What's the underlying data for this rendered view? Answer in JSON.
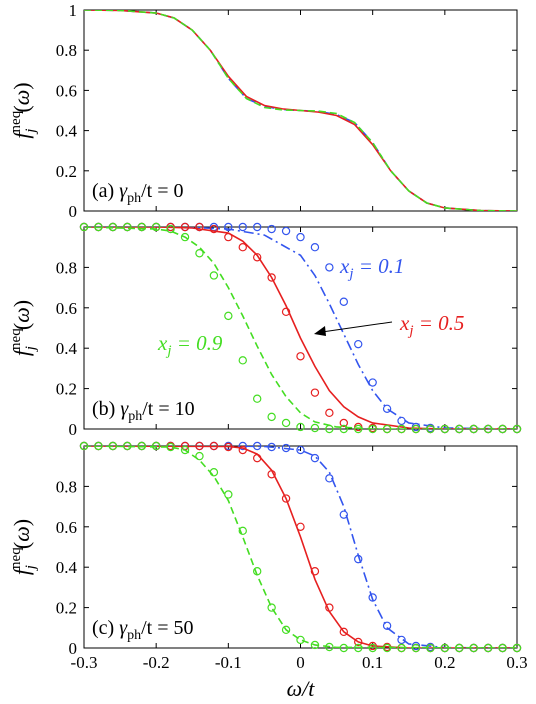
{
  "chart_data": [
    {
      "panel_label": "(a) γph/t = 0",
      "type": "line",
      "ylabel": "f_j^neq(ω)",
      "xlim": [
        -0.3,
        0.3
      ],
      "ylim": [
        0,
        1
      ],
      "yticks": [
        "0",
        "0.2",
        "0.4",
        "0.6",
        "0.8",
        "1"
      ],
      "series": [
        {
          "color": "#3355ee",
          "style": "dash-dot",
          "x": [
            -0.3,
            -0.25,
            -0.2,
            -0.175,
            -0.15,
            -0.125,
            -0.1,
            -0.075,
            -0.05,
            -0.025,
            0,
            0.025,
            0.05,
            0.075,
            0.1,
            0.125,
            0.15,
            0.175,
            0.2,
            0.25,
            0.3
          ],
          "y": [
            1.0,
            0.998,
            0.985,
            0.96,
            0.9,
            0.8,
            0.66,
            0.56,
            0.52,
            0.505,
            0.5,
            0.495,
            0.48,
            0.44,
            0.34,
            0.2,
            0.1,
            0.04,
            0.015,
            0.002,
            0.0
          ]
        },
        {
          "color": "#e62020",
          "style": "solid",
          "x": [
            -0.3,
            -0.25,
            -0.2,
            -0.175,
            -0.15,
            -0.125,
            -0.1,
            -0.075,
            -0.05,
            -0.025,
            0,
            0.025,
            0.05,
            0.075,
            0.1,
            0.125,
            0.15,
            0.175,
            0.2,
            0.25,
            0.3
          ],
          "y": [
            1.0,
            0.998,
            0.985,
            0.96,
            0.9,
            0.8,
            0.67,
            0.57,
            0.525,
            0.508,
            0.5,
            0.492,
            0.475,
            0.43,
            0.33,
            0.2,
            0.1,
            0.04,
            0.015,
            0.002,
            0.0
          ]
        },
        {
          "color": "#44dd22",
          "style": "dashed",
          "x": [
            -0.3,
            -0.25,
            -0.2,
            -0.175,
            -0.15,
            -0.125,
            -0.1,
            -0.075,
            -0.05,
            -0.025,
            0,
            0.025,
            0.05,
            0.075,
            0.1,
            0.125,
            0.15,
            0.175,
            0.2,
            0.25,
            0.3
          ],
          "y": [
            1.0,
            0.998,
            0.985,
            0.96,
            0.9,
            0.8,
            0.66,
            0.56,
            0.515,
            0.503,
            0.5,
            0.497,
            0.485,
            0.44,
            0.34,
            0.2,
            0.1,
            0.04,
            0.015,
            0.002,
            0.0
          ]
        }
      ]
    },
    {
      "panel_label": "(b) γph/t = 10",
      "type": "line",
      "ylabel": "f_j^neq(ω)",
      "xlim": [
        -0.3,
        0.3
      ],
      "ylim": [
        0,
        1
      ],
      "yticks": [
        "0",
        "0.2",
        "0.4",
        "0.6",
        "0.8"
      ],
      "series": [
        {
          "name": "x_j = 0.1",
          "color": "#3355ee",
          "style": "dash-dot",
          "x": [
            -0.3,
            -0.2,
            -0.15,
            -0.1,
            -0.05,
            0,
            0.02,
            0.04,
            0.06,
            0.08,
            0.1,
            0.12,
            0.15,
            0.2,
            0.3
          ],
          "y": [
            1.0,
            1.0,
            0.998,
            0.99,
            0.96,
            0.86,
            0.76,
            0.62,
            0.47,
            0.32,
            0.19,
            0.1,
            0.03,
            0.005,
            0.0
          ],
          "points_x": [
            -0.3,
            -0.28,
            -0.26,
            -0.24,
            -0.22,
            -0.2,
            -0.18,
            -0.16,
            -0.14,
            -0.12,
            -0.1,
            -0.08,
            -0.06,
            -0.04,
            -0.02,
            0,
            0.02,
            0.04,
            0.06,
            0.08,
            0.1,
            0.12,
            0.14,
            0.16,
            0.18,
            0.2,
            0.22,
            0.24,
            0.26,
            0.28,
            0.3
          ],
          "points_y": [
            1,
            1,
            1,
            1,
            1,
            1,
            1,
            1,
            1,
            1,
            1,
            1,
            1,
            0.99,
            0.98,
            0.95,
            0.9,
            0.8,
            0.63,
            0.42,
            0.23,
            0.1,
            0.04,
            0.01,
            0.005,
            0,
            0,
            0,
            0,
            0,
            0
          ]
        },
        {
          "name": "x_j = 0.5",
          "color": "#e62020",
          "style": "solid",
          "x": [
            -0.3,
            -0.2,
            -0.15,
            -0.1,
            -0.08,
            -0.06,
            -0.04,
            -0.02,
            0,
            0.02,
            0.04,
            0.06,
            0.08,
            0.1,
            0.15,
            0.2,
            0.3
          ],
          "y": [
            1.0,
            1.0,
            0.995,
            0.97,
            0.93,
            0.86,
            0.75,
            0.61,
            0.45,
            0.31,
            0.19,
            0.11,
            0.06,
            0.03,
            0.005,
            0.0,
            0.0
          ],
          "points_x": [
            -0.3,
            -0.28,
            -0.26,
            -0.24,
            -0.22,
            -0.2,
            -0.18,
            -0.16,
            -0.14,
            -0.12,
            -0.1,
            -0.08,
            -0.06,
            -0.04,
            -0.02,
            0,
            0.02,
            0.04,
            0.06,
            0.08,
            0.1,
            0.12,
            0.14,
            0.16,
            0.18,
            0.2,
            0.22,
            0.24,
            0.26,
            0.28,
            0.3
          ],
          "points_y": [
            1,
            1,
            1,
            1,
            1,
            1,
            1,
            1,
            1,
            0.99,
            0.95,
            0.9,
            0.85,
            0.75,
            0.58,
            0.36,
            0.18,
            0.08,
            0.03,
            0.01,
            0.005,
            0,
            0,
            0,
            0,
            0,
            0,
            0,
            0,
            0,
            0
          ]
        },
        {
          "name": "x_j = 0.9",
          "color": "#44dd22",
          "style": "dashed",
          "x": [
            -0.3,
            -0.2,
            -0.18,
            -0.16,
            -0.14,
            -0.12,
            -0.1,
            -0.08,
            -0.06,
            -0.04,
            -0.02,
            0,
            0.02,
            0.05,
            0.1,
            0.3
          ],
          "y": [
            1.0,
            0.99,
            0.98,
            0.95,
            0.9,
            0.82,
            0.7,
            0.56,
            0.41,
            0.27,
            0.16,
            0.08,
            0.035,
            0.01,
            0.0,
            0.0
          ],
          "points_x": [
            -0.3,
            -0.28,
            -0.26,
            -0.24,
            -0.22,
            -0.2,
            -0.18,
            -0.16,
            -0.14,
            -0.12,
            -0.1,
            -0.08,
            -0.06,
            -0.04,
            -0.02,
            0,
            0.02,
            0.04,
            0.06,
            0.08,
            0.1,
            0.12,
            0.14,
            0.16,
            0.18,
            0.2,
            0.22,
            0.24,
            0.26,
            0.28,
            0.3
          ],
          "points_y": [
            1,
            1,
            1,
            1,
            1,
            1,
            0.99,
            0.95,
            0.87,
            0.76,
            0.56,
            0.34,
            0.15,
            0.06,
            0.03,
            0.01,
            0.005,
            0,
            0,
            0,
            0,
            0,
            0,
            0,
            0,
            0,
            0,
            0,
            0,
            0,
            0
          ]
        }
      ],
      "annotations": [
        {
          "text": "x_j = 0.1",
          "color": "#3355ee"
        },
        {
          "text": "x_j = 0.5",
          "color": "#e62020"
        },
        {
          "text": "x_j = 0.9",
          "color": "#44dd22"
        }
      ]
    },
    {
      "panel_label": "(c) γph/t = 50",
      "type": "line",
      "xlabel": "ω/t",
      "ylabel": "f_j^neq(ω)",
      "xlim": [
        -0.3,
        0.3
      ],
      "ylim": [
        0,
        1
      ],
      "xticks": [
        "-0.3",
        "-0.2",
        "-0.1",
        "0",
        "0.1",
        "0.2",
        "0.3"
      ],
      "yticks": [
        "0",
        "0.2",
        "0.4",
        "0.6",
        "0.8"
      ],
      "series": [
        {
          "color": "#3355ee",
          "style": "dash-dot",
          "x": [
            -0.3,
            -0.1,
            -0.05,
            0,
            0.02,
            0.04,
            0.06,
            0.08,
            0.1,
            0.12,
            0.15,
            0.2,
            0.3
          ],
          "y": [
            1.0,
            1.0,
            0.998,
            0.98,
            0.95,
            0.87,
            0.7,
            0.46,
            0.24,
            0.1,
            0.02,
            0.002,
            0.0
          ],
          "points_x": [
            -0.3,
            -0.28,
            -0.26,
            -0.24,
            -0.22,
            -0.2,
            -0.18,
            -0.16,
            -0.14,
            -0.12,
            -0.1,
            -0.08,
            -0.06,
            -0.04,
            -0.02,
            0,
            0.02,
            0.04,
            0.06,
            0.08,
            0.1,
            0.12,
            0.14,
            0.16,
            0.18,
            0.2,
            0.22,
            0.24,
            0.26,
            0.28,
            0.3
          ],
          "points_y": [
            1,
            1,
            1,
            1,
            1,
            1,
            1,
            1,
            1,
            1,
            1,
            1,
            1,
            0.995,
            0.99,
            0.98,
            0.94,
            0.84,
            0.66,
            0.44,
            0.25,
            0.11,
            0.04,
            0.01,
            0.005,
            0,
            0,
            0,
            0,
            0,
            0
          ]
        },
        {
          "color": "#e62020",
          "style": "solid",
          "x": [
            -0.3,
            -0.1,
            -0.08,
            -0.06,
            -0.04,
            -0.02,
            0,
            0.02,
            0.04,
            0.06,
            0.08,
            0.1,
            0.15,
            0.3
          ],
          "y": [
            1.0,
            0.998,
            0.99,
            0.96,
            0.88,
            0.74,
            0.55,
            0.34,
            0.18,
            0.08,
            0.03,
            0.01,
            0.0,
            0.0
          ],
          "points_x": [
            -0.3,
            -0.28,
            -0.26,
            -0.24,
            -0.22,
            -0.2,
            -0.18,
            -0.16,
            -0.14,
            -0.12,
            -0.1,
            -0.08,
            -0.06,
            -0.04,
            -0.02,
            0,
            0.02,
            0.04,
            0.06,
            0.08,
            0.1,
            0.12,
            0.14,
            0.16,
            0.18,
            0.2,
            0.22,
            0.24,
            0.26,
            0.28,
            0.3
          ],
          "points_y": [
            1,
            1,
            1,
            1,
            1,
            1,
            1,
            1,
            1,
            1,
            0.995,
            0.98,
            0.94,
            0.86,
            0.74,
            0.6,
            0.38,
            0.2,
            0.08,
            0.03,
            0.01,
            0.005,
            0,
            0,
            0,
            0,
            0,
            0,
            0,
            0,
            0
          ]
        },
        {
          "color": "#44dd22",
          "style": "dashed",
          "x": [
            -0.3,
            -0.18,
            -0.16,
            -0.14,
            -0.12,
            -0.1,
            -0.08,
            -0.06,
            -0.04,
            -0.02,
            0,
            0.02,
            0.05,
            0.3
          ],
          "y": [
            1.0,
            0.995,
            0.98,
            0.93,
            0.85,
            0.73,
            0.55,
            0.36,
            0.2,
            0.09,
            0.04,
            0.015,
            0.003,
            0.0
          ],
          "points_x": [
            -0.3,
            -0.28,
            -0.26,
            -0.24,
            -0.22,
            -0.2,
            -0.18,
            -0.16,
            -0.14,
            -0.12,
            -0.1,
            -0.08,
            -0.06,
            -0.04,
            -0.02,
            0,
            0.02,
            0.04,
            0.06,
            0.08,
            0.1,
            0.12,
            0.14,
            0.16,
            0.18,
            0.2,
            0.22,
            0.24,
            0.26,
            0.28,
            0.3
          ],
          "points_y": [
            1,
            1,
            1,
            1,
            1,
            1,
            0.995,
            0.98,
            0.95,
            0.87,
            0.76,
            0.58,
            0.38,
            0.2,
            0.09,
            0.04,
            0.015,
            0.005,
            0,
            0,
            0,
            0,
            0,
            0,
            0,
            0,
            0,
            0,
            0,
            0,
            0
          ]
        }
      ]
    }
  ]
}
